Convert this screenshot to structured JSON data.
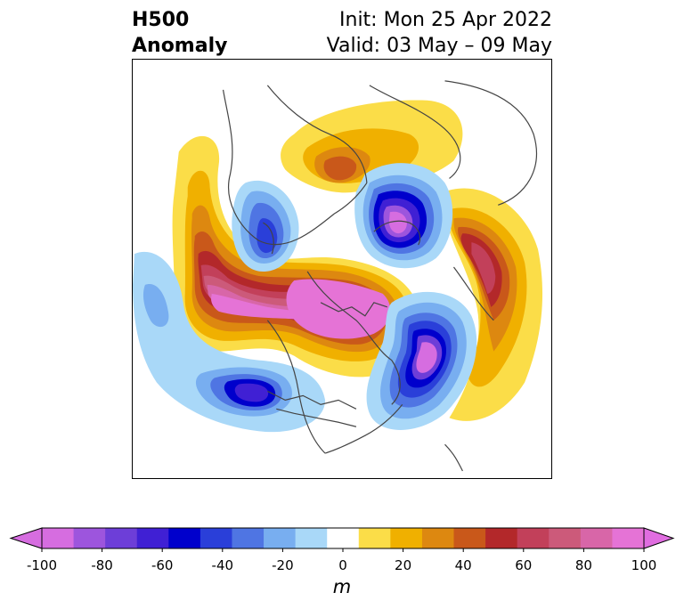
{
  "header": {
    "title_line1": "H500",
    "title_line2": "Anomaly",
    "init_text": "Init: Mon 25 Apr 2022",
    "valid_text": "Valid: 03 May – 09 May"
  },
  "map": {
    "projection": "north-polar-stereographic",
    "field": "500 hPa geopotential height anomaly",
    "coastlines": true,
    "borders": true
  },
  "colorbar": {
    "unit": "m",
    "extend": "both",
    "ticks": [
      "-100",
      "-80",
      "-60",
      "-40",
      "-20",
      "0",
      "20",
      "40",
      "60",
      "80",
      "100"
    ],
    "levels": [
      -100,
      -90,
      -80,
      -70,
      -60,
      -50,
      -40,
      -30,
      -20,
      -10,
      10,
      20,
      30,
      40,
      50,
      60,
      70,
      80,
      90,
      100
    ],
    "colors": [
      "#d66de0",
      "#9d55dd",
      "#6d3ed8",
      "#4020d4",
      "#0000cc",
      "#2a3fd9",
      "#4f75e3",
      "#78aef0",
      "#a9d8f8",
      "#ffffff",
      "#fbdd48",
      "#f0b000",
      "#dd8810",
      "#c9581a",
      "#b3282a",
      "#c2405a",
      "#cc5a7a",
      "#d866a8",
      "#e573d6"
    ],
    "under_color": "#d66de0",
    "over_color": "#e06de0"
  }
}
